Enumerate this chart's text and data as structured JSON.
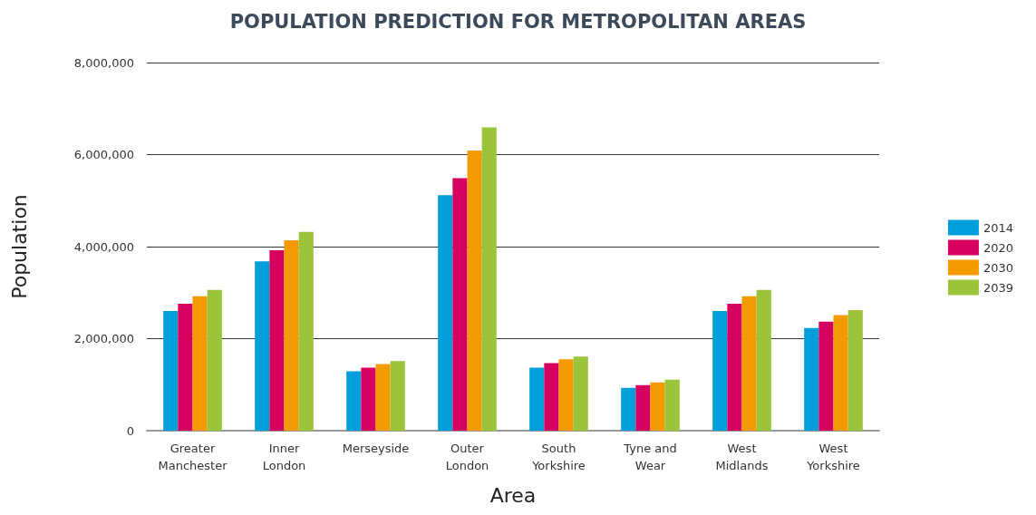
{
  "chart_data": {
    "type": "bar",
    "title": "POPULATION PREDICTION FOR METROPOLITAN AREAS",
    "xlabel": "Area",
    "ylabel": "Population",
    "categories": [
      "Greater\nManchester",
      "Inner\nLondon",
      "Merseyside",
      "Outer\nLondon",
      "South\nYorkshire",
      "Tyne and\nWear",
      "West\nMidlands",
      "West\nYorkshire"
    ],
    "series": [
      {
        "name": "2014",
        "color": "#009fdb",
        "values": [
          2600000,
          3680000,
          1290000,
          5120000,
          1370000,
          930000,
          2600000,
          2230000
        ]
      },
      {
        "name": "2020",
        "color": "#d5005f",
        "values": [
          2760000,
          3920000,
          1370000,
          5490000,
          1470000,
          990000,
          2760000,
          2370000
        ]
      },
      {
        "name": "2030",
        "color": "#f59a00",
        "values": [
          2920000,
          4140000,
          1450000,
          6090000,
          1550000,
          1050000,
          2920000,
          2510000
        ]
      },
      {
        "name": "2039",
        "color": "#9bc43b",
        "values": [
          3060000,
          4320000,
          1510000,
          6590000,
          1610000,
          1110000,
          3060000,
          2620000
        ]
      }
    ],
    "ylim": [
      0,
      8000000
    ],
    "yticks": [
      {
        "value": 0,
        "label": "0"
      },
      {
        "value": 2000000,
        "label": "2,000,000"
      },
      {
        "value": 4000000,
        "label": "4,000,000"
      },
      {
        "value": 6000000,
        "label": "6,000,000"
      },
      {
        "value": 8000000,
        "label": "8,000,000"
      }
    ],
    "grid": "y",
    "legend": "right"
  }
}
